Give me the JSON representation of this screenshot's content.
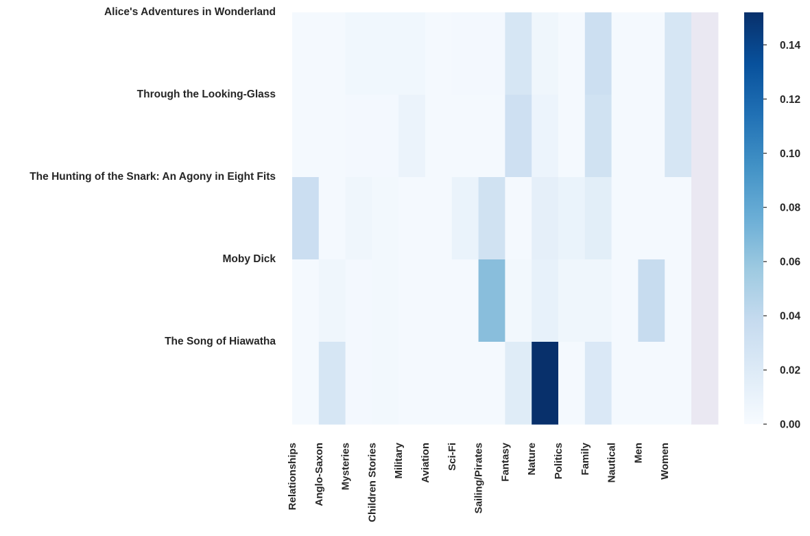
{
  "chart_data": {
    "type": "heatmap",
    "title": "",
    "xlabel": "",
    "ylabel": "",
    "rows": [
      "Alice's Adventures in Wonderland",
      "Through the Looking-Glass",
      "The Hunting of the Snark: An Agony in Eight Fits",
      "Moby Dick",
      "The Song of Hiawatha"
    ],
    "columns": [
      "Relationships",
      "Anglo-Saxon",
      "Mysteries",
      "Children Stories",
      "Military",
      "Aviation",
      "Sci-Fi",
      "Sailing/Pirates",
      "Fantasy",
      "Nature",
      "Politics",
      "Family",
      "Nautical",
      "Men",
      "Women",
      ""
    ],
    "values": [
      [
        0.002,
        0.002,
        0.005,
        0.005,
        0.005,
        0.002,
        0.003,
        0.003,
        0.025,
        0.006,
        0.002,
        0.033,
        0.002,
        0.002,
        0.025,
        null
      ],
      [
        0.002,
        0.002,
        0.003,
        0.003,
        0.009,
        0.002,
        0.002,
        0.002,
        0.032,
        0.008,
        0.002,
        0.03,
        0.002,
        0.002,
        0.025,
        null
      ],
      [
        0.034,
        0.002,
        0.006,
        0.004,
        0.002,
        0.002,
        0.01,
        0.03,
        0.002,
        0.014,
        0.01,
        0.016,
        0.002,
        0.002,
        0.002,
        null
      ],
      [
        0.002,
        0.006,
        0.003,
        0.004,
        0.002,
        0.002,
        0.002,
        0.065,
        0.004,
        0.012,
        0.006,
        0.006,
        0.002,
        0.037,
        0.002,
        null
      ],
      [
        0.002,
        0.025,
        0.003,
        0.004,
        0.002,
        0.002,
        0.002,
        0.002,
        0.018,
        0.152,
        0.002,
        0.022,
        0.002,
        0.002,
        0.002,
        null
      ]
    ],
    "null_cell_color": "#eae8f2",
    "colormap": "Blues",
    "vmin": 0,
    "vmax": 0.152,
    "colorbar_ticks": [
      0,
      0.02,
      0.04,
      0.06,
      0.08,
      0.1,
      0.12,
      0.14
    ],
    "colorbar_tick_labels": [
      "0.00",
      "0.02",
      "0.04",
      "0.06",
      "0.08",
      "0.10",
      "0.12",
      "0.14"
    ]
  }
}
